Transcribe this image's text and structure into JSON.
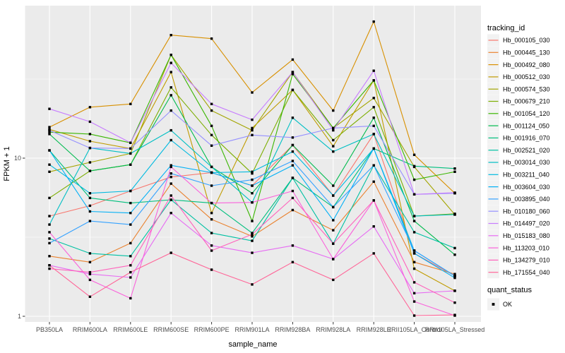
{
  "figure": {
    "background": "#FFFFFF",
    "panel_background": "#EBEBEB",
    "grid_color": "#FFFFFF",
    "tick_color": "#333333",
    "tick_text_color": "#4D4D4D",
    "marker_color": "#000000",
    "legend_key_background": "#F2F2F2"
  },
  "axes": {
    "x_title": "sample_name",
    "y_title": "FPKM + 1",
    "y_tick_labels": [
      "10",
      "1"
    ],
    "y_tick_values": [
      10,
      1
    ],
    "y_scale": "log10"
  },
  "legend": {
    "tracking_title": "tracking_id",
    "quant_title": "quant_status",
    "quant_items": [
      {
        "label": "OK",
        "marker": "black-square"
      }
    ]
  },
  "chart_data": {
    "type": "line",
    "title": "",
    "xlabel": "sample_name",
    "ylabel": "FPKM + 1",
    "y_scale": "log10",
    "ylim": [
      1,
      92
    ],
    "y_breaks": [
      1,
      10
    ],
    "y_minor_breaks": [
      3.162,
      31.623
    ],
    "grid": true,
    "legend_position": "right",
    "marker": "square",
    "marker_meaning": "quant_status OK",
    "categories": [
      "PB350LA",
      "RRIM600LA",
      "RRIM600LE",
      "RRIM600SE",
      "RRIM600PE",
      "RRIM901LA",
      "RRIM928BA",
      "RRIM928LA",
      "RRIM928LE",
      "RRII105LA_Control",
      "RRII105LA_Stressed"
    ],
    "series": [
      {
        "name": "Hb_000105_030",
        "color": "#F8766D",
        "values": [
          4.3,
          5.0,
          6.2,
          7.6,
          8.1,
          6.7,
          12.1,
          5.8,
          14.2,
          2.5,
          1.8
        ]
      },
      {
        "name": "Hb_000445_130",
        "color": "#EA8331",
        "values": [
          2.4,
          2.2,
          2.9,
          6.9,
          4.1,
          3.2,
          4.7,
          3.5,
          7.1,
          2.2,
          1.85
        ]
      },
      {
        "name": "Hb_000492_080",
        "color": "#D89000",
        "values": [
          15.7,
          21.0,
          22.0,
          60.0,
          57.0,
          26.0,
          42.0,
          20.0,
          73.0,
          10.5,
          6.0
        ]
      },
      {
        "name": "Hb_000512_030",
        "color": "#C09B00",
        "values": [
          15.2,
          12.8,
          11.5,
          35.0,
          4.5,
          15.5,
          27.0,
          11.9,
          31.0,
          2.0,
          1.45
        ]
      },
      {
        "name": "Hb_000574_530",
        "color": "#A3A500",
        "values": [
          8.2,
          9.4,
          10.7,
          45.0,
          20.0,
          15.0,
          35.0,
          15.5,
          24.0,
          8.8,
          4.4
        ]
      },
      {
        "name": "Hb_000679_210",
        "color": "#7CAE00",
        "values": [
          5.6,
          8.3,
          9.1,
          28.0,
          14.0,
          8.0,
          27.0,
          13.0,
          21.0,
          4.3,
          4.45
        ]
      },
      {
        "name": "Hb_001054_120",
        "color": "#39B600",
        "values": [
          14.6,
          14.2,
          12.5,
          45.0,
          16.0,
          4.0,
          34.0,
          15.5,
          31.0,
          7.3,
          8.2
        ]
      },
      {
        "name": "Hb_001124_050",
        "color": "#00BB4E",
        "values": [
          14.2,
          8.3,
          9.1,
          25.0,
          8.8,
          6.0,
          12.1,
          6.7,
          18.0,
          4.0,
          2.45
        ]
      },
      {
        "name": "Hb_001916_070",
        "color": "#00BF7D",
        "values": [
          11.2,
          5.6,
          5.2,
          5.45,
          5.2,
          3.36,
          7.5,
          4.9,
          11.5,
          8.9,
          8.6
        ]
      },
      {
        "name": "Hb_002521_020",
        "color": "#00C1A3",
        "values": [
          3.1,
          2.5,
          2.4,
          5.45,
          3.36,
          3.0,
          7.5,
          2.88,
          9.0,
          3.4,
          2.7
        ]
      },
      {
        "name": "Hb_003014_030",
        "color": "#00BFC4",
        "values": [
          3.8,
          11.6,
          10.7,
          15.0,
          8.8,
          5.25,
          18.0,
          11.0,
          14.2,
          4.3,
          4.4
        ]
      },
      {
        "name": "Hb_003211_040",
        "color": "#00BAE0",
        "values": [
          9.1,
          6.0,
          6.2,
          13.0,
          8.1,
          8.2,
          11.0,
          5.8,
          11.5,
          2.6,
          1.8
        ]
      },
      {
        "name": "Hb_003604_030",
        "color": "#00B0F6",
        "values": [
          11.2,
          4.6,
          4.5,
          9.0,
          8.1,
          6.7,
          9.0,
          4.05,
          11.5,
          2.5,
          1.75
        ]
      },
      {
        "name": "Hb_003895_040",
        "color": "#35A2FF",
        "values": [
          2.9,
          4.0,
          3.8,
          8.0,
          6.7,
          7.3,
          9.6,
          4.9,
          9.0,
          2.6,
          1.8
        ]
      },
      {
        "name": "Hb_010180_060",
        "color": "#9590FF",
        "values": [
          15.0,
          11.6,
          11.5,
          20.0,
          12.0,
          14.0,
          13.5,
          15.5,
          16.0,
          5.9,
          6.0
        ]
      },
      {
        "name": "Hb_014497_020",
        "color": "#C77CFF",
        "values": [
          20.5,
          17.0,
          12.5,
          40.0,
          22.0,
          17.5,
          35.0,
          15.0,
          35.7,
          5.9,
          6.05
        ]
      },
      {
        "name": "Hb_015183_080",
        "color": "#E76BF3",
        "values": [
          2.1,
          1.85,
          1.76,
          4.5,
          2.8,
          2.52,
          2.8,
          2.3,
          3.7,
          1.4,
          1.45
        ]
      },
      {
        "name": "Hb_113203_010",
        "color": "#FA62DB",
        "values": [
          3.4,
          1.7,
          1.3,
          8.8,
          5.2,
          5.25,
          6.2,
          2.3,
          5.4,
          1.24,
          1.01
        ]
      },
      {
        "name": "Hb_134279_010",
        "color": "#FF62BC",
        "values": [
          2.0,
          1.9,
          2.1,
          5.8,
          2.6,
          3.3,
          5.6,
          2.88,
          5.4,
          1.64,
          1.22
        ]
      },
      {
        "name": "Hb_171554_040",
        "color": "#FF6598",
        "values": [
          2.1,
          1.33,
          1.9,
          2.52,
          1.97,
          1.59,
          2.2,
          1.7,
          2.5,
          1.01,
          1.02
        ]
      }
    ]
  }
}
